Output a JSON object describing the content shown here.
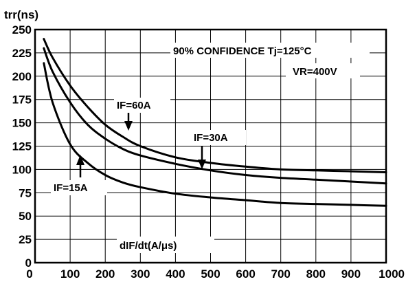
{
  "chart_data": {
    "type": "line",
    "ylabel": "trr(ns)",
    "xlabel": "dIF/dt(A/μs)",
    "xlim": [
      0,
      1000
    ],
    "ylim": [
      0,
      250
    ],
    "x_ticks": [
      "0",
      "100",
      "200",
      "300",
      "400",
      "500",
      "600",
      "700",
      "800",
      "900",
      "1000"
    ],
    "y_ticks": [
      "0",
      "25",
      "50",
      "75",
      "100",
      "125",
      "150",
      "175",
      "200",
      "225",
      "250"
    ],
    "grid": true,
    "annotations": [
      "90% CONFIDENCE Tj=125°C",
      "VR=400V"
    ],
    "series": [
      {
        "name": "IF=60A",
        "x": [
          25,
          50,
          100,
          150,
          200,
          250,
          300,
          400,
          500,
          600,
          700,
          800,
          900,
          1000
        ],
        "y": [
          240,
          220,
          190,
          167,
          148,
          135,
          125,
          113,
          107,
          103,
          100,
          99,
          98,
          97
        ]
      },
      {
        "name": "IF=30A",
        "x": [
          25,
          50,
          100,
          150,
          200,
          250,
          300,
          400,
          500,
          600,
          700,
          800,
          900,
          1000
        ],
        "y": [
          230,
          205,
          172,
          148,
          133,
          122,
          115,
          106,
          99,
          94,
          91,
          89,
          87,
          85
        ]
      },
      {
        "name": "IF=15A",
        "x": [
          25,
          50,
          100,
          150,
          200,
          250,
          300,
          400,
          500,
          600,
          700,
          800,
          900,
          1000
        ],
        "y": [
          214,
          172,
          127,
          107,
          94,
          86,
          81,
          74,
          70,
          67,
          64,
          63,
          62,
          61
        ]
      }
    ]
  }
}
